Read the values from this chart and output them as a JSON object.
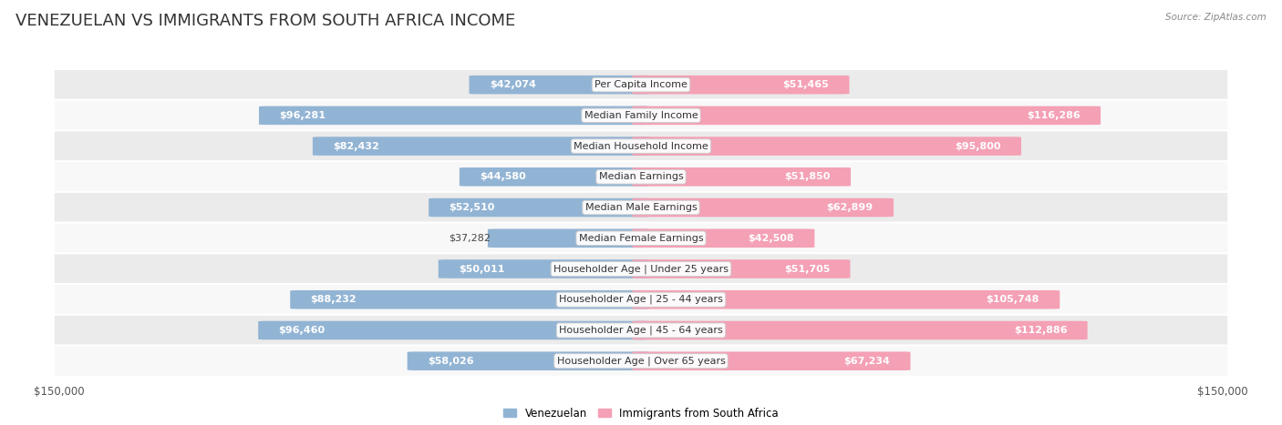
{
  "title": "VENEZUELAN VS IMMIGRANTS FROM SOUTH AFRICA INCOME",
  "source": "Source: ZipAtlas.com",
  "categories": [
    "Per Capita Income",
    "Median Family Income",
    "Median Household Income",
    "Median Earnings",
    "Median Male Earnings",
    "Median Female Earnings",
    "Householder Age | Under 25 years",
    "Householder Age | 25 - 44 years",
    "Householder Age | 45 - 64 years",
    "Householder Age | Over 65 years"
  ],
  "venezuelan": [
    42074,
    96281,
    82432,
    44580,
    52510,
    37282,
    50011,
    88232,
    96460,
    58026
  ],
  "south_africa": [
    51465,
    116286,
    95800,
    51850,
    62899,
    42508,
    51705,
    105748,
    112886,
    67234
  ],
  "max_value": 150000,
  "blue_color": "#92b4d4",
  "blue_dark_color": "#6fa0cc",
  "pink_color": "#f4a0b5",
  "pink_dark_color": "#ee7096",
  "blue_label": "Venezuelan",
  "pink_label": "Immigrants from South Africa",
  "bar_height": 0.58,
  "bg_even_color": "#ebebeb",
  "bg_odd_color": "#f8f8f8",
  "title_fontsize": 13,
  "label_fontsize": 8,
  "value_fontsize": 8,
  "axis_label": "$150,000",
  "inside_threshold": 0.28
}
